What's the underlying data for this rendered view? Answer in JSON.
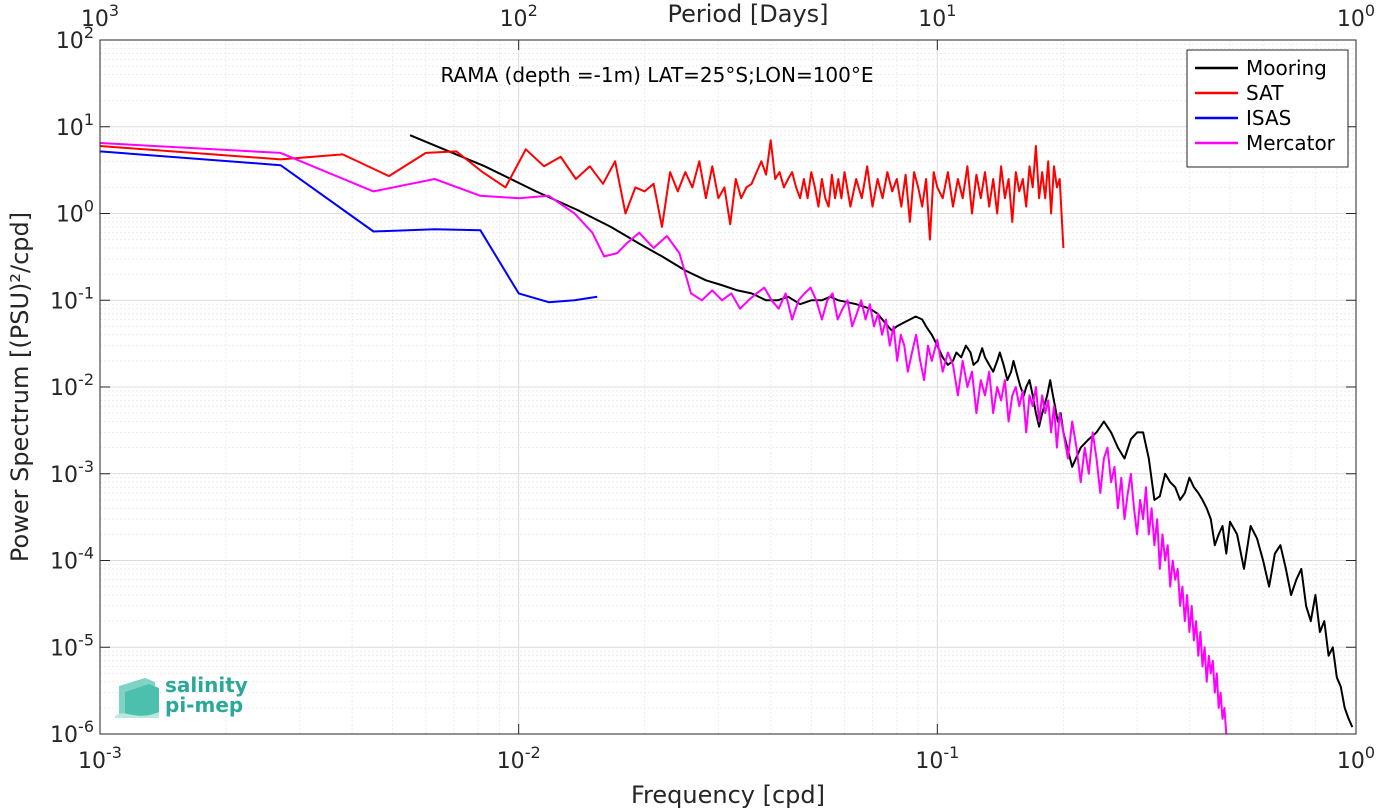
{
  "chart_data": {
    "type": "line",
    "x_scale": "log",
    "y_scale": "log",
    "xlim": [
      0.001,
      1
    ],
    "ylim": [
      1e-06,
      100
    ],
    "xlabel": "Frequency [cpd]",
    "ylabel": "Power Spectrum [(PSU)²/cpd]",
    "top_axis_label": "Period [Days]",
    "annotation": "RAMA (depth =-1m) LAT=25°S;LON=100°E",
    "grid": true,
    "legend_position": "top-right",
    "x_ticks": [
      {
        "value": 0.001,
        "base": "10",
        "exp": "-3"
      },
      {
        "value": 0.01,
        "base": "10",
        "exp": "-2"
      },
      {
        "value": 0.1,
        "base": "10",
        "exp": "-1"
      },
      {
        "value": 1,
        "base": "10",
        "exp": "0"
      }
    ],
    "top_ticks": [
      {
        "value": 0.001,
        "base": "10",
        "exp": "3"
      },
      {
        "value": 0.01,
        "base": "10",
        "exp": "2"
      },
      {
        "value": 0.1,
        "base": "10",
        "exp": "1"
      },
      {
        "value": 1,
        "base": "10",
        "exp": "0"
      }
    ],
    "y_ticks": [
      {
        "value": 100,
        "base": "10",
        "exp": "2"
      },
      {
        "value": 10,
        "base": "10",
        "exp": "1"
      },
      {
        "value": 1,
        "base": "10",
        "exp": "0"
      },
      {
        "value": 0.1,
        "base": "10",
        "exp": "-1"
      },
      {
        "value": 0.01,
        "base": "10",
        "exp": "-2"
      },
      {
        "value": 0.001,
        "base": "10",
        "exp": "-3"
      },
      {
        "value": 0.0001,
        "base": "10",
        "exp": "-4"
      },
      {
        "value": 1e-05,
        "base": "10",
        "exp": "-5"
      },
      {
        "value": 1e-06,
        "base": "10",
        "exp": "-6"
      }
    ],
    "series": [
      {
        "name": "Mooring",
        "color": "#000000",
        "x": [
          0.0055,
          0.0083,
          0.011,
          0.0138,
          0.0166,
          0.0194,
          0.022,
          0.025,
          0.028,
          0.0305,
          0.0333,
          0.036,
          0.039,
          0.0416,
          0.044,
          0.047,
          0.05,
          0.053,
          0.0555,
          0.058,
          0.061,
          0.064,
          0.0666,
          0.069,
          0.072,
          0.075,
          0.0777,
          0.08,
          0.083,
          0.086,
          0.0888,
          0.092,
          0.094,
          0.097,
          0.1,
          0.103,
          0.106,
          0.109,
          0.111,
          0.114,
          0.117,
          0.12,
          0.122,
          0.125,
          0.128,
          0.13,
          0.133,
          0.136,
          0.139,
          0.141,
          0.144,
          0.147,
          0.15,
          0.152,
          0.155,
          0.158,
          0.161,
          0.163,
          0.166,
          0.169,
          0.172,
          0.175,
          0.177,
          0.18,
          0.183,
          0.186,
          0.188,
          0.191,
          0.194,
          0.197,
          0.2,
          0.21,
          0.22,
          0.23,
          0.24,
          0.25,
          0.26,
          0.27,
          0.28,
          0.29,
          0.3,
          0.31,
          0.32,
          0.33,
          0.34,
          0.35,
          0.36,
          0.37,
          0.38,
          0.39,
          0.4,
          0.41,
          0.42,
          0.43,
          0.44,
          0.45,
          0.46,
          0.47,
          0.48,
          0.49,
          0.5,
          0.52,
          0.54,
          0.56,
          0.58,
          0.6,
          0.62,
          0.64,
          0.66,
          0.68,
          0.7,
          0.72,
          0.74,
          0.76,
          0.78,
          0.8,
          0.82,
          0.84,
          0.86,
          0.88,
          0.9,
          0.92,
          0.94,
          0.96,
          0.98
        ],
        "y": [
          8,
          3.5,
          1.8,
          1.1,
          0.7,
          0.45,
          0.32,
          0.22,
          0.17,
          0.15,
          0.13,
          0.12,
          0.1,
          0.1,
          0.11,
          0.09,
          0.1,
          0.1,
          0.11,
          0.1,
          0.095,
          0.09,
          0.085,
          0.08,
          0.07,
          0.055,
          0.045,
          0.05,
          0.055,
          0.06,
          0.065,
          0.06,
          0.05,
          0.04,
          0.03,
          0.022,
          0.018,
          0.02,
          0.025,
          0.022,
          0.03,
          0.025,
          0.018,
          0.02,
          0.028,
          0.022,
          0.018,
          0.015,
          0.02,
          0.025,
          0.018,
          0.012,
          0.015,
          0.02,
          0.014,
          0.01,
          0.008,
          0.01,
          0.012,
          0.008,
          0.005,
          0.0035,
          0.0045,
          0.006,
          0.008,
          0.012,
          0.009,
          0.006,
          0.004,
          0.005,
          0.003,
          0.0012,
          0.002,
          0.0025,
          0.003,
          0.004,
          0.003,
          0.002,
          0.0015,
          0.0025,
          0.003,
          0.003,
          0.0015,
          0.0005,
          0.00055,
          0.001,
          0.0008,
          0.0007,
          0.0005,
          0.0006,
          0.0009,
          0.0007,
          0.0006,
          0.0005,
          0.0004,
          0.0003,
          0.00015,
          0.0002,
          0.00025,
          0.00012,
          0.00028,
          0.0002,
          8e-05,
          0.00025,
          0.00018,
          0.0001,
          5e-05,
          0.00012,
          0.00015,
          8e-05,
          4e-05,
          6e-05,
          8e-05,
          3e-05,
          2e-05,
          4e-05,
          1.5e-05,
          2e-05,
          8e-06,
          1e-05,
          4.5e-06,
          3.5e-06,
          2e-06,
          1.5e-06,
          1.2e-06
        ]
      },
      {
        "name": "SAT",
        "color": "#ff0000",
        "x": [
          0.001,
          0.0027,
          0.0038,
          0.0049,
          0.006,
          0.0071,
          0.0082,
          0.0093,
          0.0104,
          0.0115,
          0.0126,
          0.0137,
          0.0148,
          0.0159,
          0.017,
          0.018,
          0.019,
          0.02,
          0.021,
          0.022,
          0.023,
          0.024,
          0.025,
          0.026,
          0.027,
          0.028,
          0.029,
          0.03,
          0.031,
          0.032,
          0.033,
          0.034,
          0.035,
          0.036,
          0.037,
          0.038,
          0.039,
          0.04,
          0.041,
          0.042,
          0.043,
          0.044,
          0.045,
          0.046,
          0.047,
          0.048,
          0.049,
          0.05,
          0.051,
          0.052,
          0.053,
          0.054,
          0.055,
          0.056,
          0.057,
          0.058,
          0.059,
          0.06,
          0.062,
          0.064,
          0.066,
          0.068,
          0.07,
          0.072,
          0.074,
          0.076,
          0.078,
          0.08,
          0.082,
          0.084,
          0.086,
          0.088,
          0.09,
          0.092,
          0.094,
          0.096,
          0.098,
          0.1,
          0.103,
          0.106,
          0.109,
          0.112,
          0.115,
          0.118,
          0.121,
          0.124,
          0.127,
          0.13,
          0.133,
          0.136,
          0.139,
          0.142,
          0.145,
          0.148,
          0.151,
          0.154,
          0.157,
          0.16,
          0.163,
          0.166,
          0.169,
          0.172,
          0.175,
          0.178,
          0.181,
          0.184,
          0.187,
          0.19,
          0.193,
          0.196,
          0.2
        ],
        "y": [
          6,
          4.2,
          4.8,
          2.7,
          5,
          5.2,
          3,
          2,
          5.5,
          3.5,
          4.5,
          2.5,
          3.5,
          2.2,
          4,
          1,
          2,
          1.8,
          2.2,
          0.7,
          3,
          1.8,
          3,
          2,
          4,
          1.5,
          3.5,
          1.5,
          2,
          0.75,
          2.5,
          1.5,
          2,
          2.2,
          3,
          4,
          2.8,
          7,
          2.5,
          3,
          2,
          2.5,
          3,
          2,
          1.5,
          2.5,
          1.5,
          3,
          2,
          1.2,
          2.5,
          1.5,
          1.2,
          2.8,
          1.5,
          2.5,
          1.5,
          3,
          1.2,
          2.5,
          1.5,
          3.5,
          1.2,
          2.5,
          1.5,
          3,
          1.8,
          2.5,
          1.2,
          2.8,
          0.8,
          3,
          2,
          1.2,
          2.5,
          0.5,
          3,
          2,
          1.5,
          3,
          1.2,
          2.5,
          1.5,
          3.5,
          1,
          2.8,
          1.5,
          3,
          1.2,
          2.5,
          1,
          3.5,
          1.5,
          2.5,
          0.8,
          3,
          1.8,
          2.5,
          1.2,
          3.5,
          2,
          6,
          1.5,
          3,
          1.5,
          4,
          1,
          3.5,
          2,
          2.5,
          0.4
        ]
      },
      {
        "name": "ISAS",
        "color": "#0000ff",
        "x": [
          0.001,
          0.0027,
          0.0045,
          0.0063,
          0.0081,
          0.01,
          0.0118,
          0.0136,
          0.0154
        ],
        "y": [
          5.2,
          3.6,
          0.62,
          0.66,
          0.64,
          0.12,
          0.095,
          0.1,
          0.11
        ]
      },
      {
        "name": "Mercator",
        "color": "#ff00ff",
        "x": [
          0.001,
          0.0027,
          0.0045,
          0.0063,
          0.0081,
          0.01,
          0.0118,
          0.0136,
          0.015,
          0.016,
          0.0172,
          0.0181,
          0.0194,
          0.021,
          0.0226,
          0.0242,
          0.0258,
          0.0274,
          0.029,
          0.0306,
          0.0322,
          0.0338,
          0.0354,
          0.037,
          0.0386,
          0.0402,
          0.0418,
          0.0434,
          0.045,
          0.0466,
          0.0482,
          0.0498,
          0.0514,
          0.053,
          0.0546,
          0.0562,
          0.0578,
          0.0594,
          0.061,
          0.0626,
          0.0642,
          0.0658,
          0.0674,
          0.069,
          0.0706,
          0.0722,
          0.0738,
          0.0754,
          0.077,
          0.0786,
          0.0802,
          0.0818,
          0.0834,
          0.085,
          0.087,
          0.089,
          0.091,
          0.093,
          0.095,
          0.097,
          0.1,
          0.103,
          0.106,
          0.109,
          0.112,
          0.115,
          0.118,
          0.121,
          0.124,
          0.127,
          0.13,
          0.133,
          0.136,
          0.139,
          0.142,
          0.145,
          0.148,
          0.151,
          0.154,
          0.157,
          0.16,
          0.163,
          0.166,
          0.169,
          0.172,
          0.175,
          0.178,
          0.181,
          0.184,
          0.187,
          0.19,
          0.193,
          0.196,
          0.2,
          0.205,
          0.21,
          0.215,
          0.22,
          0.225,
          0.23,
          0.235,
          0.24,
          0.245,
          0.25,
          0.255,
          0.26,
          0.265,
          0.27,
          0.275,
          0.28,
          0.285,
          0.29,
          0.295,
          0.3,
          0.305,
          0.31,
          0.315,
          0.32,
          0.325,
          0.33,
          0.335,
          0.34,
          0.345,
          0.35,
          0.355,
          0.36,
          0.365,
          0.37,
          0.375,
          0.38,
          0.385,
          0.39,
          0.395,
          0.4,
          0.405,
          0.41,
          0.415,
          0.42,
          0.425,
          0.43,
          0.435,
          0.44,
          0.445,
          0.45,
          0.455,
          0.46,
          0.465,
          0.47,
          0.475,
          0.48,
          0.485,
          0.49
        ],
        "y": [
          6.5,
          5,
          1.8,
          2.5,
          1.6,
          1.5,
          1.6,
          1,
          0.6,
          0.32,
          0.35,
          0.45,
          0.6,
          0.4,
          0.55,
          0.35,
          0.12,
          0.1,
          0.13,
          0.1,
          0.12,
          0.08,
          0.1,
          0.12,
          0.14,
          0.1,
          0.08,
          0.12,
          0.06,
          0.1,
          0.12,
          0.14,
          0.1,
          0.06,
          0.1,
          0.12,
          0.06,
          0.08,
          0.1,
          0.05,
          0.07,
          0.1,
          0.06,
          0.09,
          0.05,
          0.07,
          0.04,
          0.06,
          0.03,
          0.05,
          0.02,
          0.04,
          0.03,
          0.015,
          0.025,
          0.04,
          0.02,
          0.012,
          0.03,
          0.02,
          0.035,
          0.015,
          0.025,
          0.018,
          0.008,
          0.02,
          0.01,
          0.015,
          0.005,
          0.012,
          0.008,
          0.015,
          0.005,
          0.01,
          0.007,
          0.012,
          0.004,
          0.008,
          0.01,
          0.006,
          0.009,
          0.003,
          0.008,
          0.006,
          0.01,
          0.004,
          0.008,
          0.005,
          0.007,
          0.003,
          0.006,
          0.002,
          0.005,
          0.003,
          0.0015,
          0.004,
          0.002,
          0.0008,
          0.002,
          0.001,
          0.003,
          0.0015,
          0.0006,
          0.0015,
          0.002,
          0.0008,
          0.0012,
          0.0004,
          0.0009,
          0.0003,
          0.0006,
          0.001,
          0.0004,
          0.0002,
          0.0005,
          0.0003,
          0.0007,
          0.0002,
          0.0004,
          0.00015,
          0.0003,
          8e-05,
          0.0002,
          0.0001,
          0.00015,
          5e-05,
          0.0001,
          6e-05,
          8e-05,
          3e-05,
          5e-05,
          2e-05,
          4e-05,
          1.5e-05,
          3e-05,
          1.2e-05,
          2e-05,
          8e-06,
          1.5e-05,
          6e-06,
          1e-05,
          4e-06,
          8e-06,
          5e-06,
          7e-06,
          3e-06,
          5e-06,
          2e-06,
          3e-06,
          1.5e-06,
          2e-06,
          1e-06
        ]
      }
    ]
  },
  "logo": {
    "line1": "salinity",
    "line2": "pi-mep",
    "color": "#2ca89a"
  }
}
